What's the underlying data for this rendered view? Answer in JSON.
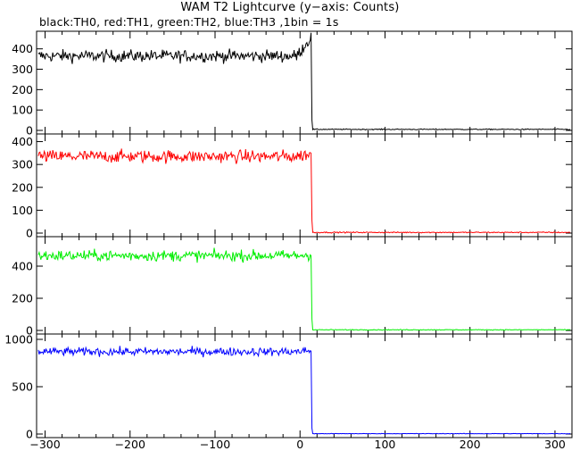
{
  "chart_data": {
    "type": "line",
    "title": "WAM T2 Lightcurve (y−axis: Counts)",
    "subtitle": "black:TH0, red:TH1, green:TH2, blue:TH3 ,1bin = 1s",
    "xlim": [
      -310,
      320
    ],
    "x_ticks": [
      -300,
      -200,
      -100,
      0,
      100,
      200,
      300
    ],
    "x_tick_labels": [
      "−300",
      "−200",
      "−100",
      "0",
      "100",
      "200",
      "300"
    ],
    "grid": false,
    "panels": [
      {
        "name": "TH0",
        "color": "#000000",
        "ylim": [
          0,
          460
        ],
        "y_ticks": [
          0,
          100,
          200,
          300,
          400
        ],
        "mean_before": 365,
        "noise": 15,
        "peak_value": 440,
        "peak_x": 10,
        "drop_x": 14,
        "tail_value": 50,
        "after_level": 5
      },
      {
        "name": "TH1",
        "color": "#ff0000",
        "ylim": [
          0,
          410
        ],
        "y_ticks": [
          0,
          100,
          200,
          300,
          400
        ],
        "mean_before": 335,
        "noise": 14,
        "peak_value": 345,
        "peak_x": 10,
        "drop_x": 14,
        "tail_value": 55,
        "after_level": 3
      },
      {
        "name": "TH2",
        "color": "#00ee00",
        "ylim": [
          0,
          550
        ],
        "y_ticks": [
          0,
          200,
          400
        ],
        "mean_before": 465,
        "noise": 17,
        "peak_value": 470,
        "peak_x": 10,
        "drop_x": 14,
        "tail_value": 70,
        "after_level": 4
      },
      {
        "name": "TH3",
        "color": "#0000ff",
        "ylim": [
          0,
          1000
        ],
        "y_ticks": [
          0,
          500,
          1000
        ],
        "mean_before": 870,
        "noise": 22,
        "peak_value": 880,
        "peak_x": 10,
        "drop_x": 14,
        "tail_value": 60,
        "after_level": 4
      }
    ]
  }
}
